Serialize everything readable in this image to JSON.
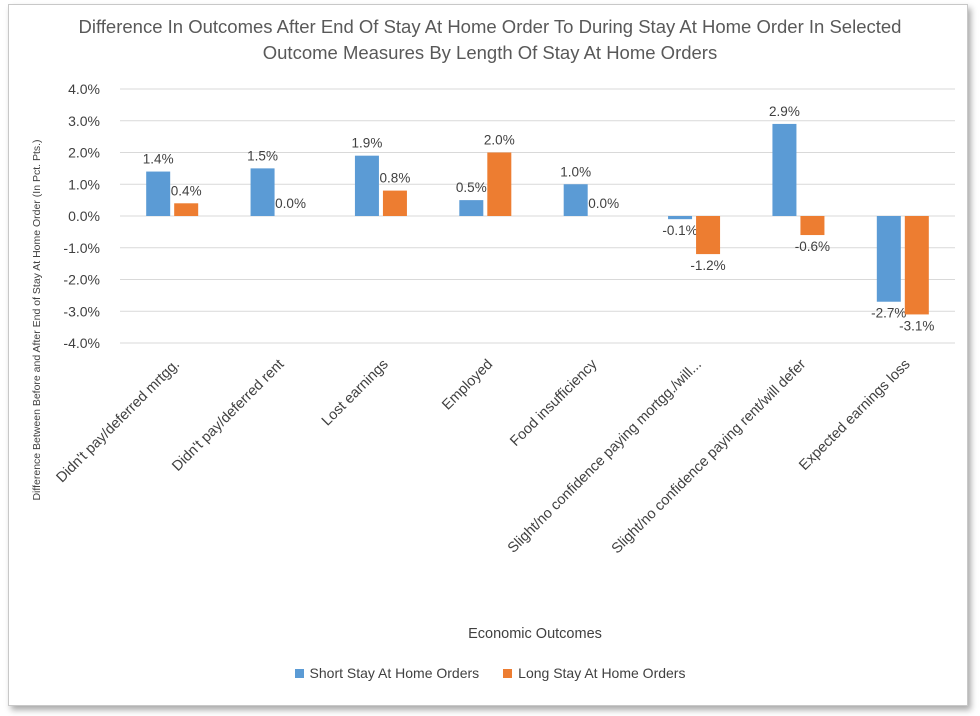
{
  "chart_data": {
    "type": "bar",
    "title": "Difference In Outcomes After End Of Stay At Home Order To During Stay At Home Order In Selected Outcome Measures By Length Of Stay At Home Orders",
    "xlabel": "Economic Outcomes",
    "ylabel": "Difference Between Before and After End of Stay At Home Order (In Pct. Pts.)",
    "ylim": [
      -4.0,
      4.0
    ],
    "yticks": [
      "4.0%",
      "3.0%",
      "2.0%",
      "1.0%",
      "0.0%",
      "-1.0%",
      "-2.0%",
      "-3.0%",
      "-4.0%"
    ],
    "grid": true,
    "legend": "bottom",
    "categories": [
      "Didn't pay/deferred mrtgg.",
      "Didn't pay/deferred rent",
      "Lost earnings",
      "Employed",
      "Food insufficiency",
      "Slight/no confidence paying mortgg./will...",
      "Slight/no confidence paying rent/will defer",
      "Expected earnings loss"
    ],
    "series": [
      {
        "name": "Short Stay At Home Orders",
        "color": "#5b9bd5",
        "values": [
          1.4,
          1.5,
          1.9,
          0.5,
          1.0,
          -0.1,
          2.9,
          -2.7
        ],
        "labels": [
          "1.4%",
          "1.5%",
          "1.9%",
          "0.5%",
          "1.0%",
          "-0.1%",
          "2.9%",
          "-2.7%"
        ]
      },
      {
        "name": "Long Stay At Home Orders",
        "color": "#ed7d31",
        "values": [
          0.4,
          0.0,
          0.8,
          2.0,
          0.0,
          -1.2,
          -0.6,
          -3.1
        ],
        "labels": [
          "0.4%",
          "0.0%",
          "0.8%",
          "2.0%",
          "0.0%",
          "-1.2%",
          "-0.6%",
          "-3.1%"
        ]
      }
    ]
  }
}
